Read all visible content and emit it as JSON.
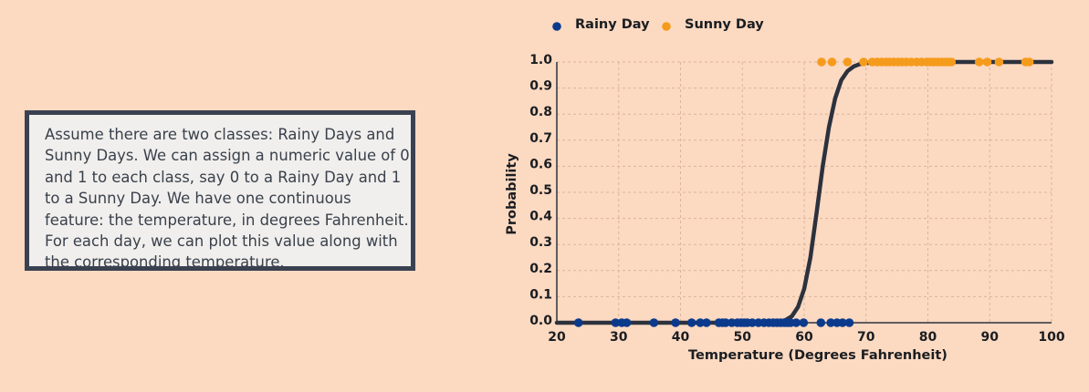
{
  "description_box": {
    "text": "Assume there are two classes: Rainy Days and Sunny Days. We can assign a numeric value of 0 and 1 to each class, say 0 to a Rainy Day and 1 to a Sunny Day. We have one continuous feature: the temperature, in degrees Fahrenheit. For each day, we can plot this value along with the corresponding temperature."
  },
  "chart_data": {
    "type": "scatter",
    "title": "",
    "xlabel": "Temperature (Degrees Fahrenheit)",
    "ylabel": "Probability",
    "xlim": [
      20,
      100
    ],
    "ylim": [
      0,
      1
    ],
    "x_ticks": [
      20,
      30,
      40,
      50,
      60,
      70,
      80,
      90,
      100
    ],
    "x_tick_labels": [
      "20",
      "30",
      "40",
      "50",
      "60",
      "70",
      "80",
      "90",
      "100"
    ],
    "y_ticks": [
      0,
      0.1,
      0.2,
      0.3,
      0.4,
      0.5,
      0.6,
      0.7,
      0.8,
      0.9,
      1.0
    ],
    "y_tick_labels": [
      "0.0",
      "0.1",
      "0.2",
      "0.3",
      "0.4",
      "0.5",
      "0.6",
      "0.7",
      "0.8",
      "0.9",
      "1.0"
    ],
    "grid": true,
    "legend_position": "top",
    "series": [
      {
        "name": "Rainy Day",
        "color": "#0b3a8c",
        "y": 0,
        "x": [
          23.5,
          29.5,
          30.5,
          31.3,
          35.7,
          39.2,
          41.8,
          43.2,
          44.2,
          46.2,
          46.8,
          47.3,
          48.3,
          49.2,
          49.8,
          50.3,
          50.8,
          51.6,
          52.6,
          53.5,
          54.3,
          55.0,
          55.6,
          56.2,
          56.8,
          57.3,
          57.8,
          58.7,
          59.9,
          62.7,
          64.3,
          65.3,
          66.2,
          67.3
        ]
      },
      {
        "name": "Sunny Day",
        "color": "#f59b1c",
        "y": 1,
        "x": [
          62.8,
          64.5,
          67.0,
          69.6,
          71.0,
          71.8,
          72.5,
          73.2,
          73.8,
          74.5,
          75.2,
          75.8,
          76.5,
          77.3,
          78.2,
          79.0,
          79.8,
          80.4,
          81.0,
          81.6,
          82.2,
          82.8,
          83.3,
          83.8,
          88.3,
          89.6,
          91.5,
          95.8,
          96.4
        ]
      },
      {
        "name": "",
        "type": "line",
        "color": "#2c323d",
        "x": [
          20,
          52,
          54,
          55,
          56,
          57,
          58,
          59,
          60,
          61,
          62,
          63,
          64,
          65,
          66,
          67,
          68,
          69,
          70,
          72,
          75,
          80,
          90,
          100
        ],
        "y": [
          0,
          0,
          0.001,
          0.002,
          0.004,
          0.01,
          0.025,
          0.06,
          0.13,
          0.25,
          0.42,
          0.6,
          0.75,
          0.86,
          0.93,
          0.965,
          0.983,
          0.992,
          0.996,
          0.999,
          1,
          1,
          1,
          1
        ]
      }
    ]
  }
}
